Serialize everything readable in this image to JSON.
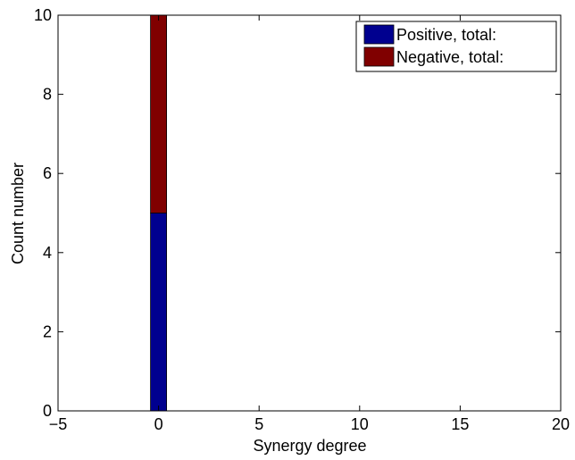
{
  "chart_data": {
    "type": "bar",
    "stacked": true,
    "xlabel": "Synergy degree",
    "ylabel": "Count number",
    "xlim": [
      -5,
      20
    ],
    "ylim": [
      0,
      10
    ],
    "xticks": [
      -5,
      0,
      5,
      10,
      15,
      20
    ],
    "yticks": [
      0,
      2,
      4,
      6,
      8,
      10
    ],
    "bin_width": 0.8,
    "categories": [
      0
    ],
    "series": [
      {
        "name": "Positive, total:",
        "values": [
          5
        ],
        "color": "#00008f"
      },
      {
        "name": "Negative, total:",
        "values": [
          5
        ],
        "color": "#800000"
      }
    ],
    "legend": {
      "position": "top-right"
    },
    "grid": false
  }
}
